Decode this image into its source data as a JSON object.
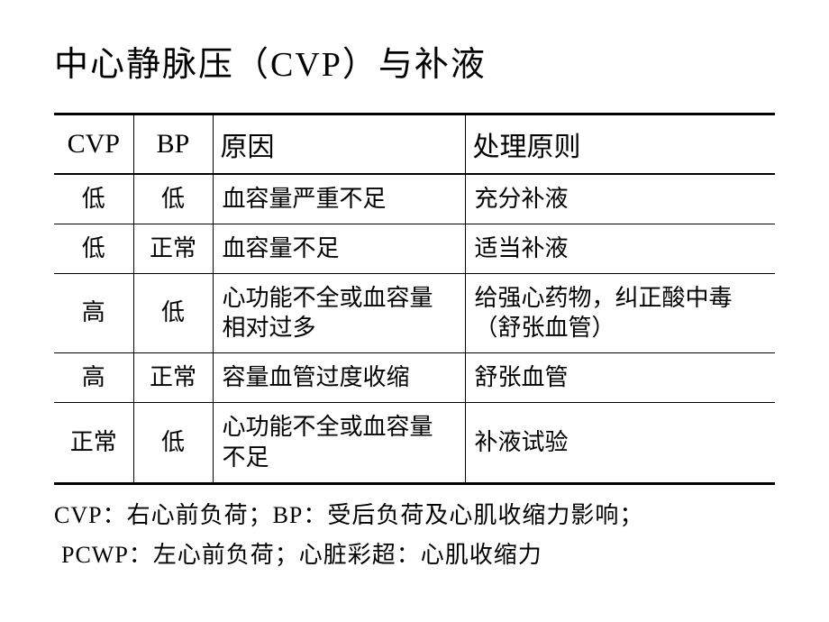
{
  "title": "中心静脉压（CVP）与补液",
  "table": {
    "columns": [
      "CVP",
      "BP",
      "原因",
      "处理原则"
    ],
    "rows": [
      {
        "cvp": "低",
        "bp": "低",
        "reason": "血容量严重不足",
        "treat": "充分补液"
      },
      {
        "cvp": "低",
        "bp": "正常",
        "reason": "血容量不足",
        "treat": "适当补液"
      },
      {
        "cvp": "高",
        "bp": "低",
        "reason": "心功能不全或血容量相对过多",
        "treat": "给强心药物，纠正酸中毒（舒张血管）"
      },
      {
        "cvp": "高",
        "bp": "正常",
        "reason": "容量血管过度收缩",
        "treat": "舒张血管"
      },
      {
        "cvp": "正常",
        "bp": "低",
        "reason": "心功能不全或血容量不足",
        "treat": "补液试验"
      }
    ],
    "column_widths": [
      "11%",
      "11%",
      "35%",
      "43%"
    ],
    "alignments": [
      "center",
      "center",
      "left",
      "left"
    ],
    "header_fontsize": 30,
    "cell_fontsize": 26,
    "border_color": "#000000",
    "background_color": "#ffffff"
  },
  "footnote": {
    "line1": "CVP：右心前负荷；BP：受后负荷及心肌收缩力影响；",
    "line2": "PCWP：左心前负荷；心脏彩超：心肌收缩力"
  },
  "styling": {
    "title_fontsize": 38,
    "footnote_fontsize": 26,
    "text_color": "#000000",
    "page_background": "#ffffff",
    "font_family": "SimSun"
  }
}
